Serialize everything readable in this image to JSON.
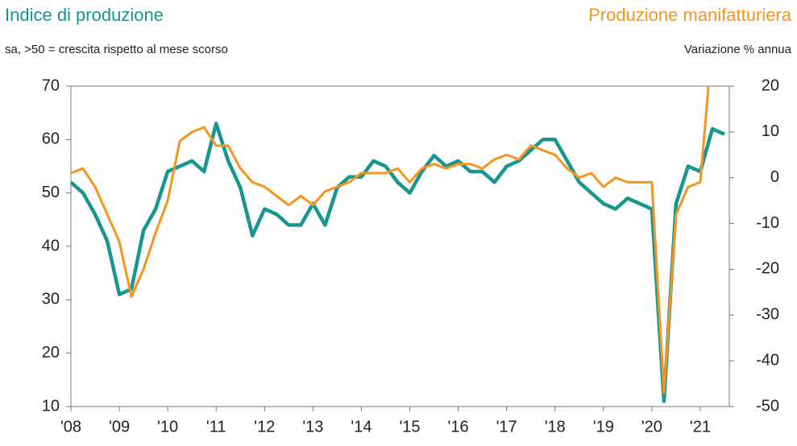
{
  "chart_data": {
    "type": "line",
    "title": "Indice di produzione",
    "subtitle": "sa, >50 = crescita rispetto al mese scorso",
    "y2_title": "Produzione manifatturiera",
    "y2_subtitle": "Variazione % annua",
    "x": [
      2008,
      2008.25,
      2008.5,
      2008.75,
      2009,
      2009.25,
      2009.5,
      2009.75,
      2010,
      2010.25,
      2010.5,
      2010.75,
      2011,
      2011.25,
      2011.5,
      2011.75,
      2012,
      2012.25,
      2012.5,
      2012.75,
      2013,
      2013.25,
      2013.5,
      2013.75,
      2014,
      2014.25,
      2014.5,
      2014.75,
      2015,
      2015.25,
      2015.5,
      2015.75,
      2016,
      2016.25,
      2016.5,
      2016.75,
      2017,
      2017.25,
      2017.5,
      2017.75,
      2018,
      2018.25,
      2018.5,
      2018.75,
      2019,
      2019.25,
      2019.5,
      2019.75,
      2020,
      2020.25,
      2020.5,
      2020.75,
      2021,
      2021.25,
      2021.5
    ],
    "series": [
      {
        "name": "Indice di produzione",
        "color": "#17958f",
        "axis": "y",
        "values": [
          52,
          50,
          46,
          41,
          31,
          32,
          43,
          47,
          54,
          55,
          56,
          54,
          63,
          56,
          51,
          42,
          47,
          46,
          44,
          44,
          48,
          44,
          51,
          53,
          53,
          56,
          55,
          52,
          50,
          54,
          57,
          55,
          56,
          54,
          54,
          52,
          55,
          56,
          58,
          60,
          60,
          56,
          52,
          50,
          48,
          47,
          49,
          48,
          47,
          11,
          48,
          55,
          54,
          62,
          61
        ]
      },
      {
        "name": "Produzione manifatturiera",
        "color": "#f7941d",
        "axis": "y2",
        "values": [
          1,
          2,
          -2,
          -8,
          -14,
          -26,
          -20,
          -12,
          -5,
          8,
          10,
          11,
          7,
          7,
          2,
          -1,
          -2,
          -4,
          -6,
          -4,
          -6,
          -3,
          -2,
          -1,
          1,
          1,
          1,
          2,
          -1,
          2,
          3,
          2,
          3,
          3,
          2,
          4,
          5,
          4,
          7,
          6,
          5,
          2,
          0,
          1,
          -2,
          0,
          -1,
          -1,
          -1,
          -47,
          -8,
          -2,
          -1,
          30,
          25
        ]
      }
    ],
    "xlim": [
      2008,
      2021.6
    ],
    "xticks": [
      {
        "value": 2008,
        "label": "'08"
      },
      {
        "value": 2009,
        "label": "'09"
      },
      {
        "value": 2010,
        "label": "'10"
      },
      {
        "value": 2011,
        "label": "'11"
      },
      {
        "value": 2012,
        "label": "'12"
      },
      {
        "value": 2013,
        "label": "'13"
      },
      {
        "value": 2014,
        "label": "'14"
      },
      {
        "value": 2015,
        "label": "'15"
      },
      {
        "value": 2016,
        "label": "'16"
      },
      {
        "value": 2017,
        "label": "'17"
      },
      {
        "value": 2018,
        "label": "'18"
      },
      {
        "value": 2019,
        "label": "'19"
      },
      {
        "value": 2020,
        "label": "'20"
      },
      {
        "value": 2021,
        "label": "'21"
      }
    ],
    "ylim": [
      10,
      70
    ],
    "yticks": [
      10,
      20,
      30,
      40,
      50,
      60,
      70
    ],
    "y2lim": [
      -50,
      20
    ],
    "y2ticks": [
      -50,
      -40,
      -30,
      -20,
      -10,
      0,
      10,
      20
    ]
  }
}
